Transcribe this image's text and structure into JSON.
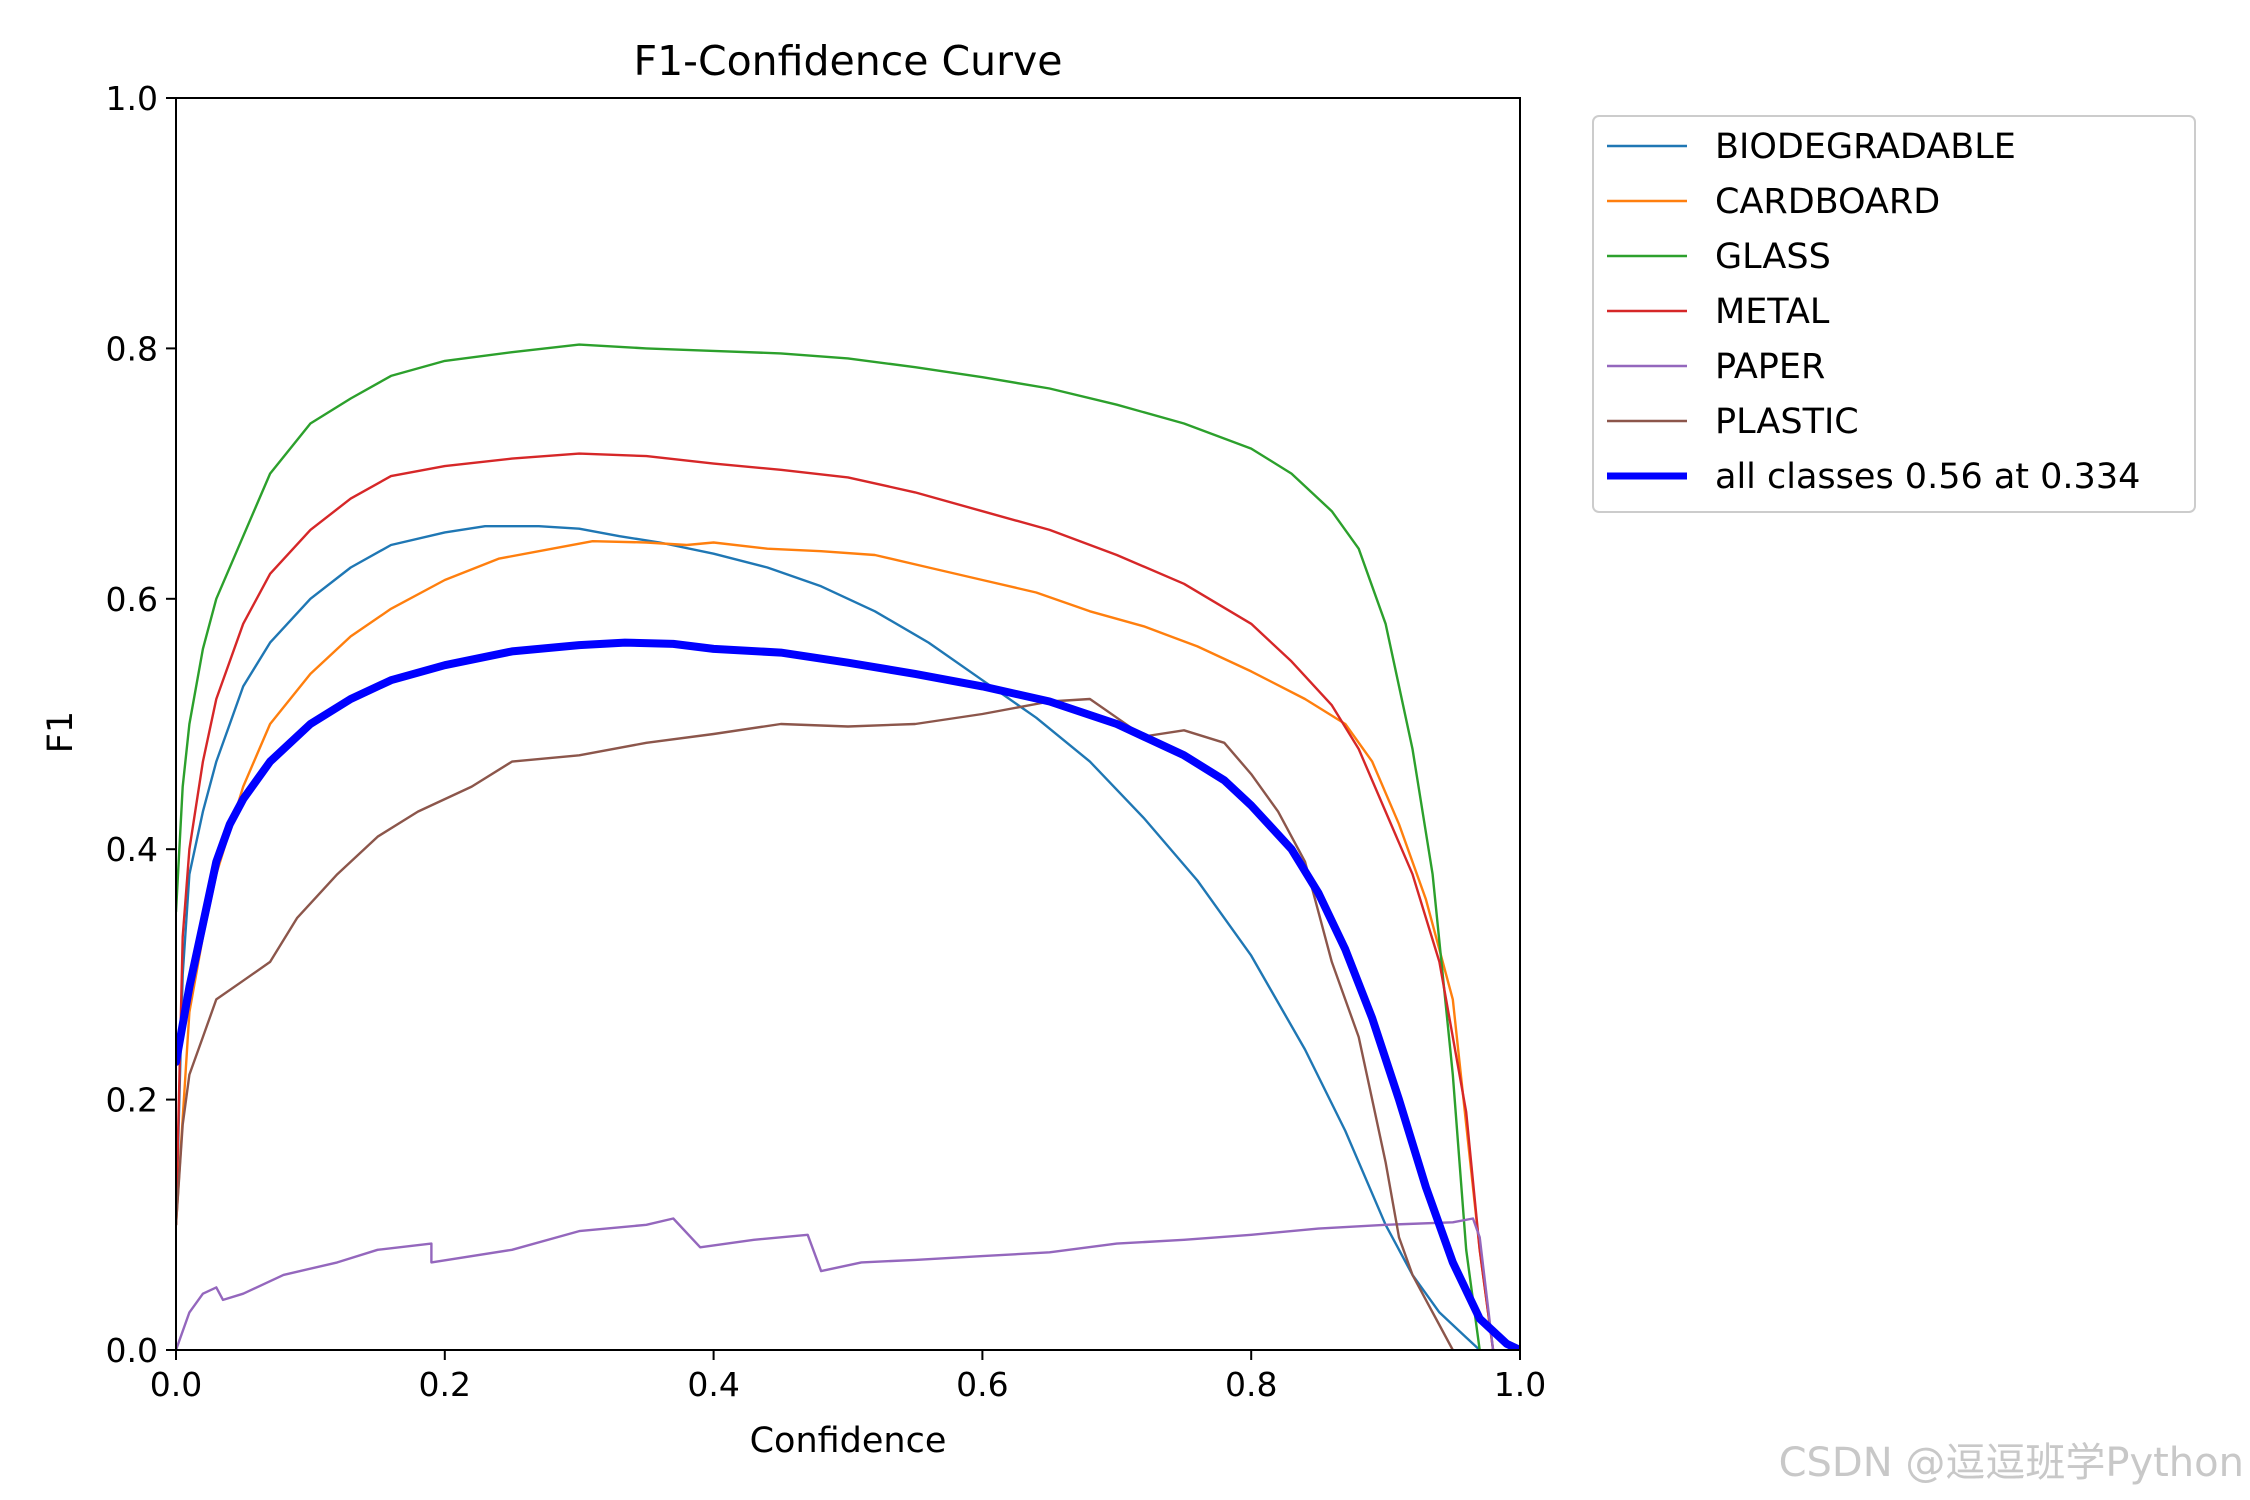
{
  "chart_data": {
    "type": "line",
    "title": "F1-Confidence Curve",
    "xlabel": "Confidence",
    "ylabel": "F1",
    "xlim": [
      0.0,
      1.0
    ],
    "ylim": [
      0.0,
      1.0
    ],
    "xticks": [
      "0.0",
      "0.2",
      "0.4",
      "0.6",
      "0.8",
      "1.0"
    ],
    "yticks": [
      "0.0",
      "0.2",
      "0.4",
      "0.6",
      "0.8",
      "1.0"
    ],
    "grid": false,
    "legend_position": "outside-top-right",
    "series": [
      {
        "name": "BIODEGRADABLE",
        "color": "#1f77b4",
        "width": 2.4,
        "points": [
          [
            0.0,
            0.1
          ],
          [
            0.005,
            0.3
          ],
          [
            0.01,
            0.38
          ],
          [
            0.02,
            0.43
          ],
          [
            0.03,
            0.47
          ],
          [
            0.04,
            0.5
          ],
          [
            0.05,
            0.53
          ],
          [
            0.07,
            0.565
          ],
          [
            0.1,
            0.6
          ],
          [
            0.13,
            0.625
          ],
          [
            0.16,
            0.643
          ],
          [
            0.2,
            0.653
          ],
          [
            0.23,
            0.658
          ],
          [
            0.27,
            0.658
          ],
          [
            0.3,
            0.656
          ],
          [
            0.33,
            0.65
          ],
          [
            0.36,
            0.645
          ],
          [
            0.4,
            0.636
          ],
          [
            0.44,
            0.625
          ],
          [
            0.48,
            0.61
          ],
          [
            0.52,
            0.59
          ],
          [
            0.56,
            0.565
          ],
          [
            0.6,
            0.535
          ],
          [
            0.64,
            0.505
          ],
          [
            0.68,
            0.47
          ],
          [
            0.72,
            0.425
          ],
          [
            0.76,
            0.375
          ],
          [
            0.8,
            0.315
          ],
          [
            0.84,
            0.24
          ],
          [
            0.87,
            0.175
          ],
          [
            0.9,
            0.1
          ],
          [
            0.92,
            0.06
          ],
          [
            0.94,
            0.03
          ],
          [
            0.96,
            0.01
          ],
          [
            0.97,
            0.0
          ]
        ]
      },
      {
        "name": "CARDBOARD",
        "color": "#ff7f0e",
        "width": 2.4,
        "points": [
          [
            0.0,
            0.1
          ],
          [
            0.01,
            0.27
          ],
          [
            0.02,
            0.33
          ],
          [
            0.03,
            0.38
          ],
          [
            0.05,
            0.45
          ],
          [
            0.07,
            0.5
          ],
          [
            0.1,
            0.54
          ],
          [
            0.13,
            0.57
          ],
          [
            0.16,
            0.592
          ],
          [
            0.2,
            0.615
          ],
          [
            0.24,
            0.632
          ],
          [
            0.28,
            0.64
          ],
          [
            0.31,
            0.646
          ],
          [
            0.35,
            0.645
          ],
          [
            0.38,
            0.643
          ],
          [
            0.4,
            0.645
          ],
          [
            0.44,
            0.64
          ],
          [
            0.48,
            0.638
          ],
          [
            0.52,
            0.635
          ],
          [
            0.56,
            0.625
          ],
          [
            0.6,
            0.615
          ],
          [
            0.64,
            0.605
          ],
          [
            0.68,
            0.59
          ],
          [
            0.72,
            0.578
          ],
          [
            0.76,
            0.562
          ],
          [
            0.8,
            0.542
          ],
          [
            0.84,
            0.52
          ],
          [
            0.87,
            0.5
          ],
          [
            0.89,
            0.47
          ],
          [
            0.91,
            0.42
          ],
          [
            0.93,
            0.36
          ],
          [
            0.95,
            0.28
          ],
          [
            0.96,
            0.18
          ],
          [
            0.97,
            0.08
          ],
          [
            0.98,
            0.0
          ]
        ]
      },
      {
        "name": "GLASS",
        "color": "#2ca02c",
        "width": 2.4,
        "points": [
          [
            0.0,
            0.35
          ],
          [
            0.005,
            0.45
          ],
          [
            0.01,
            0.5
          ],
          [
            0.02,
            0.56
          ],
          [
            0.03,
            0.6
          ],
          [
            0.05,
            0.65
          ],
          [
            0.07,
            0.7
          ],
          [
            0.1,
            0.74
          ],
          [
            0.13,
            0.76
          ],
          [
            0.16,
            0.778
          ],
          [
            0.2,
            0.79
          ],
          [
            0.25,
            0.797
          ],
          [
            0.3,
            0.803
          ],
          [
            0.35,
            0.8
          ],
          [
            0.4,
            0.798
          ],
          [
            0.45,
            0.796
          ],
          [
            0.5,
            0.792
          ],
          [
            0.55,
            0.785
          ],
          [
            0.6,
            0.777
          ],
          [
            0.65,
            0.768
          ],
          [
            0.7,
            0.755
          ],
          [
            0.75,
            0.74
          ],
          [
            0.8,
            0.72
          ],
          [
            0.83,
            0.7
          ],
          [
            0.86,
            0.67
          ],
          [
            0.88,
            0.64
          ],
          [
            0.9,
            0.58
          ],
          [
            0.92,
            0.48
          ],
          [
            0.935,
            0.38
          ],
          [
            0.95,
            0.22
          ],
          [
            0.96,
            0.08
          ],
          [
            0.97,
            0.0
          ]
        ]
      },
      {
        "name": "METAL",
        "color": "#d62728",
        "width": 2.4,
        "points": [
          [
            0.0,
            0.1
          ],
          [
            0.005,
            0.33
          ],
          [
            0.01,
            0.4
          ],
          [
            0.02,
            0.47
          ],
          [
            0.03,
            0.52
          ],
          [
            0.05,
            0.58
          ],
          [
            0.07,
            0.62
          ],
          [
            0.1,
            0.655
          ],
          [
            0.13,
            0.68
          ],
          [
            0.16,
            0.698
          ],
          [
            0.2,
            0.706
          ],
          [
            0.25,
            0.712
          ],
          [
            0.3,
            0.716
          ],
          [
            0.35,
            0.714
          ],
          [
            0.4,
            0.708
          ],
          [
            0.45,
            0.703
          ],
          [
            0.5,
            0.697
          ],
          [
            0.55,
            0.685
          ],
          [
            0.6,
            0.67
          ],
          [
            0.65,
            0.655
          ],
          [
            0.7,
            0.635
          ],
          [
            0.75,
            0.612
          ],
          [
            0.8,
            0.58
          ],
          [
            0.83,
            0.55
          ],
          [
            0.86,
            0.515
          ],
          [
            0.88,
            0.48
          ],
          [
            0.9,
            0.43
          ],
          [
            0.92,
            0.38
          ],
          [
            0.94,
            0.31
          ],
          [
            0.96,
            0.19
          ],
          [
            0.97,
            0.08
          ],
          [
            0.98,
            0.0
          ]
        ]
      },
      {
        "name": "PAPER",
        "color": "#9467bd",
        "width": 2.4,
        "points": [
          [
            0.0,
            0.0
          ],
          [
            0.01,
            0.03
          ],
          [
            0.02,
            0.045
          ],
          [
            0.03,
            0.05
          ],
          [
            0.035,
            0.04
          ],
          [
            0.05,
            0.045
          ],
          [
            0.08,
            0.06
          ],
          [
            0.12,
            0.07
          ],
          [
            0.15,
            0.08
          ],
          [
            0.19,
            0.085
          ],
          [
            0.19,
            0.07
          ],
          [
            0.25,
            0.08
          ],
          [
            0.3,
            0.095
          ],
          [
            0.35,
            0.1
          ],
          [
            0.37,
            0.105
          ],
          [
            0.39,
            0.082
          ],
          [
            0.43,
            0.088
          ],
          [
            0.47,
            0.092
          ],
          [
            0.48,
            0.063
          ],
          [
            0.51,
            0.07
          ],
          [
            0.55,
            0.072
          ],
          [
            0.6,
            0.075
          ],
          [
            0.65,
            0.078
          ],
          [
            0.7,
            0.085
          ],
          [
            0.75,
            0.088
          ],
          [
            0.8,
            0.092
          ],
          [
            0.85,
            0.097
          ],
          [
            0.9,
            0.1
          ],
          [
            0.95,
            0.102
          ],
          [
            0.965,
            0.105
          ],
          [
            0.97,
            0.09
          ],
          [
            0.98,
            0.0
          ]
        ]
      },
      {
        "name": "PLASTIC",
        "color": "#8c564b",
        "width": 2.4,
        "points": [
          [
            0.0,
            0.1
          ],
          [
            0.005,
            0.18
          ],
          [
            0.01,
            0.22
          ],
          [
            0.02,
            0.25
          ],
          [
            0.03,
            0.28
          ],
          [
            0.05,
            0.295
          ],
          [
            0.07,
            0.31
          ],
          [
            0.09,
            0.345
          ],
          [
            0.12,
            0.38
          ],
          [
            0.15,
            0.41
          ],
          [
            0.18,
            0.43
          ],
          [
            0.22,
            0.45
          ],
          [
            0.25,
            0.47
          ],
          [
            0.3,
            0.475
          ],
          [
            0.35,
            0.485
          ],
          [
            0.4,
            0.492
          ],
          [
            0.45,
            0.5
          ],
          [
            0.5,
            0.498
          ],
          [
            0.55,
            0.5
          ],
          [
            0.6,
            0.508
          ],
          [
            0.65,
            0.518
          ],
          [
            0.68,
            0.52
          ],
          [
            0.7,
            0.505
          ],
          [
            0.72,
            0.49
          ],
          [
            0.75,
            0.495
          ],
          [
            0.78,
            0.485
          ],
          [
            0.8,
            0.46
          ],
          [
            0.82,
            0.43
          ],
          [
            0.84,
            0.39
          ],
          [
            0.86,
            0.31
          ],
          [
            0.88,
            0.25
          ],
          [
            0.89,
            0.2
          ],
          [
            0.9,
            0.15
          ],
          [
            0.91,
            0.09
          ],
          [
            0.92,
            0.06
          ],
          [
            0.93,
            0.04
          ],
          [
            0.94,
            0.02
          ],
          [
            0.95,
            0.0
          ]
        ]
      },
      {
        "name": "all classes 0.56 at 0.334",
        "color": "#0000ff",
        "width": 8,
        "points": [
          [
            0.0,
            0.23
          ],
          [
            0.01,
            0.29
          ],
          [
            0.02,
            0.34
          ],
          [
            0.03,
            0.39
          ],
          [
            0.04,
            0.42
          ],
          [
            0.05,
            0.44
          ],
          [
            0.07,
            0.47
          ],
          [
            0.1,
            0.5
          ],
          [
            0.13,
            0.52
          ],
          [
            0.16,
            0.535
          ],
          [
            0.2,
            0.547
          ],
          [
            0.25,
            0.558
          ],
          [
            0.3,
            0.563
          ],
          [
            0.334,
            0.565
          ],
          [
            0.37,
            0.564
          ],
          [
            0.4,
            0.56
          ],
          [
            0.45,
            0.557
          ],
          [
            0.5,
            0.549
          ],
          [
            0.55,
            0.54
          ],
          [
            0.6,
            0.53
          ],
          [
            0.65,
            0.518
          ],
          [
            0.7,
            0.5
          ],
          [
            0.75,
            0.475
          ],
          [
            0.78,
            0.455
          ],
          [
            0.8,
            0.435
          ],
          [
            0.83,
            0.4
          ],
          [
            0.85,
            0.365
          ],
          [
            0.87,
            0.32
          ],
          [
            0.89,
            0.265
          ],
          [
            0.91,
            0.2
          ],
          [
            0.93,
            0.13
          ],
          [
            0.95,
            0.07
          ],
          [
            0.97,
            0.025
          ],
          [
            0.99,
            0.005
          ],
          [
            1.0,
            0.0
          ]
        ]
      }
    ]
  },
  "watermark": "CSDN @逗逗班学Python"
}
